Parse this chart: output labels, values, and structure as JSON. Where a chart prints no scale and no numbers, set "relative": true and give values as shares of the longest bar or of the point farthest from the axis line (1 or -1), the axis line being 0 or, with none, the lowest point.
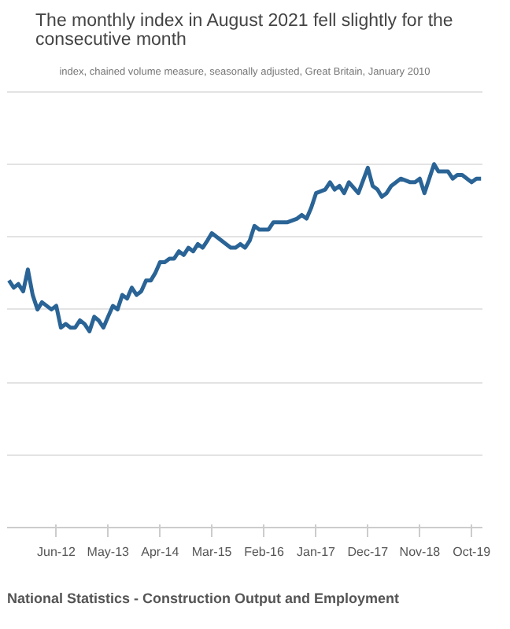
{
  "chart_data": {
    "type": "line",
    "title": "The monthly index in August 2021 fell slightly for the\nconsecutive month",
    "subtitle": "index, chained volume measure, seasonally adjusted, Great Britain, January 2010",
    "annotations": [
      "National Statistics - Construction Output and Employment"
    ],
    "relative": true,
    "grid": "y",
    "marker": "none",
    "line_style": "solid",
    "x": [
      "2011-08",
      "2011-09",
      "2011-10",
      "2011-11",
      "2011-12",
      "2012-01",
      "2012-02",
      "2012-03",
      "2012-05",
      "2012-06",
      "2012-07",
      "2012-08",
      "2012-09",
      "2012-10",
      "2012-11",
      "2012-12",
      "2013-01",
      "2013-02",
      "2013-03",
      "2013-04",
      "2013-05",
      "2013-06",
      "2013-07",
      "2013-08",
      "2013-09",
      "2013-10",
      "2013-11",
      "2013-12",
      "2014-01",
      "2014-02",
      "2014-03",
      "2014-04",
      "2014-05",
      "2014-06",
      "2014-07",
      "2014-08",
      "2014-09",
      "2014-10",
      "2014-11",
      "2014-12",
      "2015-01",
      "2015-02",
      "2015-03",
      "2015-04",
      "2015-05",
      "2015-06",
      "2015-07",
      "2015-08",
      "2015-09",
      "2015-10",
      "2015-11",
      "2015-12",
      "2016-01",
      "2016-03",
      "2016-04",
      "2016-06",
      "2016-07",
      "2016-09",
      "2016-10",
      "2016-11",
      "2016-12",
      "2017-01",
      "2017-03",
      "2017-04",
      "2017-05",
      "2017-06",
      "2017-07",
      "2017-08",
      "2017-10",
      "2017-12",
      "2018-01",
      "2018-02",
      "2018-03",
      "2018-04",
      "2018-05",
      "2018-07",
      "2018-09",
      "2018-10",
      "2018-11",
      "2018-12",
      "2019-02",
      "2019-03",
      "2019-05",
      "2019-06",
      "2019-07",
      "2019-08",
      "2019-10",
      "2019-11",
      "2019-12"
    ],
    "series": [
      {
        "color": "#2a6496",
        "values": [
          0.68,
          0.66,
          0.67,
          0.65,
          0.71,
          0.64,
          0.6,
          0.62,
          0.6,
          0.61,
          0.55,
          0.56,
          0.55,
          0.55,
          0.57,
          0.56,
          0.54,
          0.58,
          0.57,
          0.55,
          0.58,
          0.61,
          0.6,
          0.64,
          0.63,
          0.66,
          0.64,
          0.65,
          0.68,
          0.68,
          0.7,
          0.73,
          0.73,
          0.74,
          0.74,
          0.76,
          0.75,
          0.77,
          0.76,
          0.78,
          0.77,
          0.79,
          0.81,
          0.8,
          0.79,
          0.78,
          0.77,
          0.77,
          0.78,
          0.77,
          0.79,
          0.83,
          0.82,
          0.82,
          0.84,
          0.84,
          0.84,
          0.85,
          0.86,
          0.85,
          0.88,
          0.92,
          0.93,
          0.95,
          0.93,
          0.94,
          0.92,
          0.95,
          0.92,
          0.99,
          0.94,
          0.93,
          0.91,
          0.92,
          0.94,
          0.96,
          0.95,
          0.95,
          0.96,
          0.92,
          1.0,
          0.98,
          0.98,
          0.96,
          0.97,
          0.97,
          0.95,
          0.96,
          0.96
        ]
      }
    ],
    "xlim": [
      "2011-07-20",
      "2019-12-10"
    ],
    "xticks": [
      {
        "value": "2012-06",
        "label": "Jun-12"
      },
      {
        "value": "2013-05",
        "label": "May-13"
      },
      {
        "value": "2014-04",
        "label": "Apr-14"
      },
      {
        "value": "2015-03",
        "label": "Mar-15"
      },
      {
        "value": "2016-02",
        "label": "Feb-16"
      },
      {
        "value": "2017-01",
        "label": "Jan-17"
      },
      {
        "value": "2017-12",
        "label": "Dec-17"
      },
      {
        "value": "2018-11",
        "label": "Nov-18"
      },
      {
        "value": "2019-10",
        "label": "Oct-19"
      }
    ]
  }
}
